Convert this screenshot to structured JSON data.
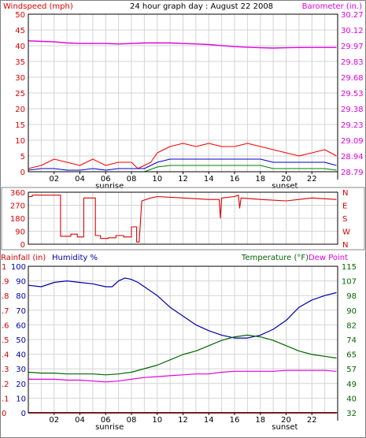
{
  "colors": {
    "wind_avg": "#0000cc",
    "wind_gust": "#ff0000",
    "wind_low": "#008000",
    "barometer": "#e000e0",
    "direction": "#dd0000",
    "humidity": "#0000aa",
    "temperature": "#006600",
    "dewpoint": "#e000e0",
    "rainfall": "#dd0000",
    "grid": "#d4d4d4",
    "frame": "#000000",
    "panel_border": "#888888"
  },
  "chart_data": [
    {
      "type": "line",
      "title": "24 hour graph day : August 22 2008",
      "ylabel_left": "Windspeed (mph)",
      "ylabel_right": "Barometer (in.)",
      "ylim_left": [
        0,
        50
      ],
      "left_ticks": [
        0,
        5,
        10,
        15,
        20,
        25,
        30,
        35,
        40,
        45,
        50
      ],
      "ylim_right": [
        28.79,
        30.27
      ],
      "right_ticks": [
        "28.79",
        "28.94",
        "29.09",
        "29.23",
        "29.38",
        "29.53",
        "29.68",
        "29.83",
        "29.97",
        "30.12",
        "30.27"
      ],
      "x_ticks": [
        "02",
        "04",
        "06",
        "08",
        "10",
        "12",
        "14",
        "16",
        "18",
        "20",
        "22"
      ],
      "x_markers": [
        {
          "label": "sunrise",
          "hour": 6.3
        },
        {
          "label": "sunset",
          "hour": 19.9
        }
      ],
      "grid": true,
      "series": [
        {
          "key": "barometer",
          "axis": "right",
          "x": [
            0,
            1,
            2,
            3,
            4,
            5,
            6,
            7,
            8,
            9,
            10,
            11,
            12,
            13,
            14,
            15,
            16,
            17,
            18,
            19,
            20,
            21,
            22,
            23,
            23.9
          ],
          "y": [
            30.02,
            30.015,
            30.01,
            30.0,
            29.995,
            29.995,
            29.995,
            29.99,
            29.995,
            30.0,
            30.0,
            30.0,
            29.995,
            29.99,
            29.985,
            29.975,
            29.965,
            29.96,
            29.955,
            29.952,
            29.955,
            29.957,
            29.958,
            29.958,
            29.958
          ]
        },
        {
          "key": "wind_gust",
          "axis": "left",
          "x": [
            0,
            1,
            2,
            3,
            4,
            5,
            6,
            7,
            8,
            8.5,
            9,
            9.5,
            10,
            11,
            12,
            13,
            14,
            15,
            16,
            17,
            18,
            19,
            20,
            21,
            22,
            23,
            23.9
          ],
          "y": [
            1,
            2,
            4,
            3,
            2,
            4,
            2,
            3,
            3,
            1,
            2,
            3,
            6,
            8,
            9,
            8,
            9,
            8,
            8,
            9,
            8,
            7,
            6,
            5,
            6,
            7,
            5
          ]
        },
        {
          "key": "wind_avg",
          "axis": "left",
          "x": [
            0,
            1,
            2,
            3,
            4,
            5,
            6,
            7,
            8,
            9,
            10,
            11,
            12,
            13,
            14,
            15,
            16,
            17,
            18,
            19,
            20,
            21,
            22,
            23,
            23.9
          ],
          "y": [
            0.5,
            1,
            1,
            0.5,
            0.5,
            1,
            0.5,
            1,
            1,
            1,
            3,
            4,
            4,
            4,
            4,
            4,
            4,
            4,
            4,
            3,
            3,
            3,
            3,
            3,
            2
          ]
        },
        {
          "key": "wind_low",
          "axis": "left",
          "x": [
            0,
            1,
            2,
            3,
            4,
            5,
            6,
            7,
            8,
            9,
            10,
            11,
            12,
            13,
            14,
            15,
            16,
            17,
            18,
            19,
            20,
            21,
            22,
            23,
            23.9
          ],
          "y": [
            0,
            0,
            0,
            0,
            0,
            0,
            0,
            0,
            0,
            0,
            1.5,
            2,
            2,
            2,
            2,
            2,
            2,
            2,
            2,
            1,
            1,
            1,
            1,
            1,
            0.5
          ]
        }
      ]
    },
    {
      "type": "line",
      "ylim": [
        0,
        360
      ],
      "left_ticks": [
        0,
        90,
        180,
        270,
        360
      ],
      "right_ticks": [
        "N",
        "W",
        "S",
        "E",
        "N"
      ],
      "grid": true,
      "series": [
        {
          "key": "direction",
          "x": [
            0,
            0.3,
            0.3,
            2.5,
            2.5,
            3.3,
            3.3,
            3.8,
            3.8,
            4.3,
            4.3,
            5.2,
            5.2,
            5.6,
            5.6,
            6.2,
            6.2,
            6.8,
            6.8,
            7.4,
            7.4,
            8.0,
            8.0,
            8.4,
            8.4,
            8.6,
            8.8,
            9.5,
            10,
            12,
            14,
            14.8,
            14.9,
            15.0,
            16,
            16.3,
            16.4,
            16.5,
            18,
            20,
            22,
            23.9
          ],
          "y": [
            330,
            330,
            340,
            340,
            55,
            55,
            70,
            70,
            50,
            50,
            320,
            320,
            60,
            60,
            40,
            40,
            45,
            45,
            60,
            60,
            50,
            50,
            120,
            120,
            15,
            15,
            300,
            320,
            330,
            320,
            310,
            310,
            180,
            320,
            330,
            340,
            250,
            320,
            310,
            300,
            320,
            310
          ]
        }
      ]
    },
    {
      "type": "line",
      "ylabel_left_outer": "Rainfall (in)",
      "ylabel_left_inner": "Humidity %",
      "ylabel_right_a": "Temperature (°F)",
      "ylabel_right_b": "Dew Point",
      "rain_ticks": [
        "0",
        ".1",
        ".2",
        ".3",
        ".4",
        ".5",
        ".6",
        ".7",
        ".8",
        ".9",
        "1"
      ],
      "humidity_ticks": [
        0,
        10,
        20,
        30,
        40,
        50,
        60,
        70,
        80,
        90,
        100
      ],
      "humidity_lim": [
        0,
        100
      ],
      "temp_ticks": [
        32,
        40,
        49,
        57,
        65,
        74,
        82,
        90,
        98,
        107,
        115
      ],
      "temp_lim": [
        32,
        115
      ],
      "x_ticks": [
        "02",
        "04",
        "06",
        "08",
        "10",
        "12",
        "14",
        "16",
        "18",
        "20",
        "22"
      ],
      "x_markers": [
        {
          "label": "sunrise",
          "hour": 6.3
        },
        {
          "label": "sunset",
          "hour": 19.9
        }
      ],
      "grid": true,
      "series": [
        {
          "key": "humidity",
          "axis": "humidity",
          "x": [
            0,
            1,
            2,
            3,
            4,
            5,
            6,
            6.5,
            7,
            7.5,
            8,
            8.5,
            9,
            10,
            11,
            12,
            13,
            14,
            15,
            16,
            17,
            18,
            19,
            20,
            21,
            22,
            23,
            23.9
          ],
          "y": [
            87,
            86,
            89,
            90,
            89,
            88,
            86,
            86,
            90,
            92,
            91,
            89,
            86,
            80,
            72,
            66,
            60,
            56,
            53,
            51,
            51,
            53,
            57,
            63,
            72,
            77,
            80,
            82
          ]
        },
        {
          "key": "temperature",
          "axis": "temp",
          "x": [
            0,
            1,
            2,
            3,
            4,
            5,
            6,
            7,
            8,
            9,
            10,
            11,
            12,
            13,
            14,
            15,
            16,
            17,
            18,
            19,
            20,
            21,
            22,
            23,
            23.9
          ],
          "y": [
            55,
            54.5,
            54.5,
            54,
            54,
            54,
            53.5,
            54,
            55,
            57,
            59,
            62,
            65,
            67,
            70,
            73,
            75,
            76,
            75,
            73,
            70,
            67,
            65,
            64,
            63
          ]
        },
        {
          "key": "dewpoint",
          "axis": "temp",
          "x": [
            0,
            1,
            2,
            3,
            4,
            5,
            6,
            7,
            8,
            9,
            10,
            11,
            12,
            13,
            14,
            15,
            16,
            17,
            18,
            19,
            20,
            21,
            22,
            23,
            23.9
          ],
          "y": [
            51,
            51,
            51,
            50.5,
            50.5,
            50,
            49.5,
            50,
            51,
            52,
            52.5,
            53,
            53.5,
            54,
            54,
            55,
            55.5,
            55.5,
            55.5,
            55.5,
            56,
            56,
            56,
            56,
            55.5
          ]
        },
        {
          "key": "rainfall",
          "axis": "rain",
          "x": [
            0,
            23.9
          ],
          "y": [
            0,
            0
          ]
        }
      ]
    }
  ]
}
